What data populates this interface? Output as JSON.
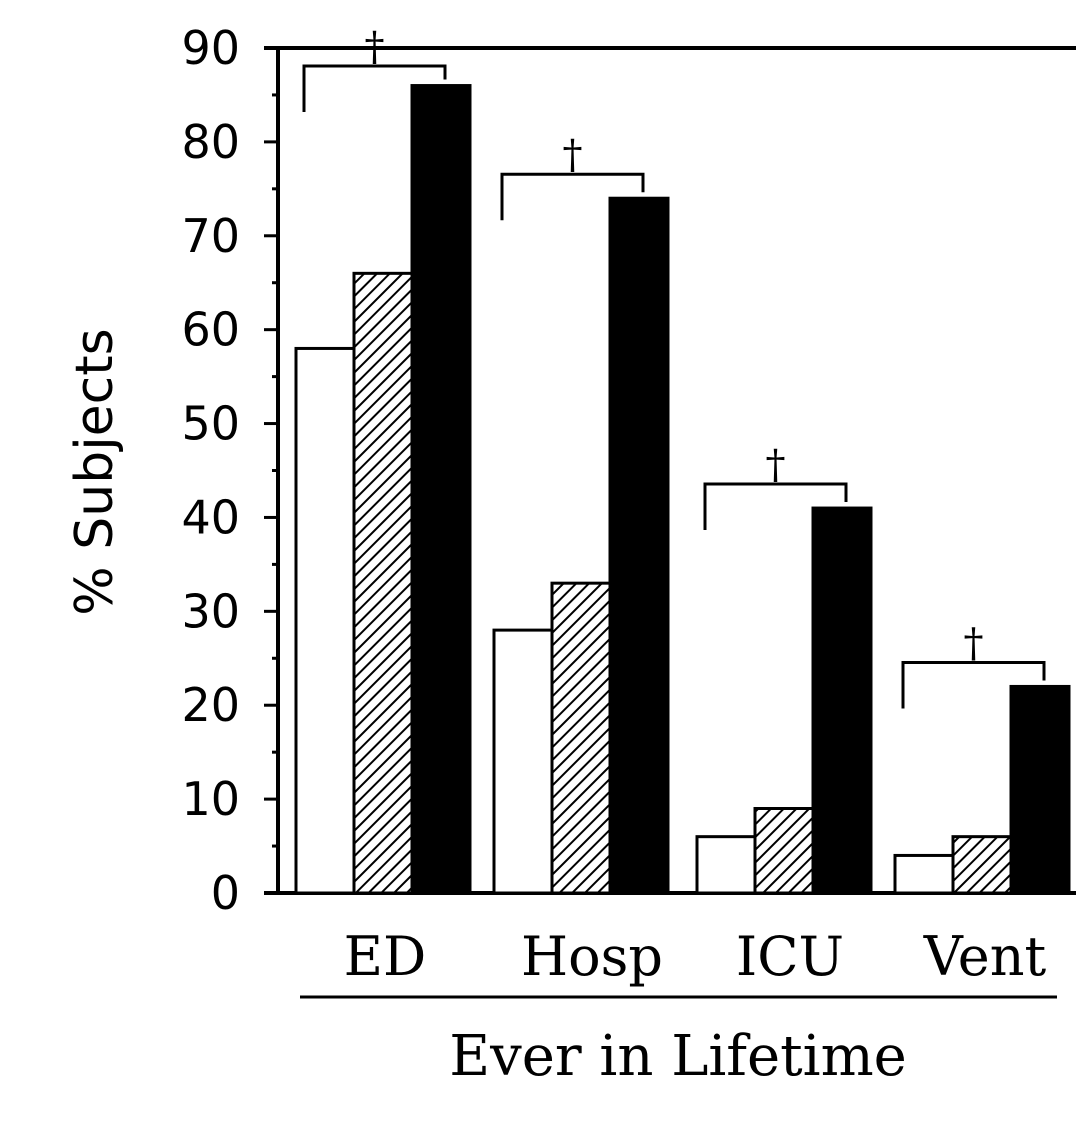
{
  "chart_data": {
    "type": "bar",
    "categories": [
      "ED",
      "Hosp",
      "ICU",
      "Vent"
    ],
    "series": [
      {
        "values": [
          58,
          28,
          6,
          4
        ],
        "fill": "white"
      },
      {
        "values": [
          66,
          33,
          9,
          6
        ],
        "fill": "hatched"
      },
      {
        "values": [
          86,
          74,
          41,
          22
        ],
        "fill": "black"
      }
    ],
    "xlabel": "Ever in Lifetime",
    "ylabel": "% Subjects",
    "ylim": [
      0,
      90
    ],
    "yticks": [
      "0",
      "10",
      "20",
      "30",
      "40",
      "50",
      "60",
      "70",
      "80",
      "90"
    ],
    "significance": [
      {
        "category": "ED",
        "mark": "†"
      },
      {
        "category": "Hosp",
        "mark": "†"
      },
      {
        "category": "ICU",
        "mark": "†"
      },
      {
        "category": "Vent",
        "mark": "†"
      }
    ],
    "grid": false,
    "legend": "none",
    "colors": {
      "ink": "#000000",
      "paper": "#ffffff"
    }
  }
}
